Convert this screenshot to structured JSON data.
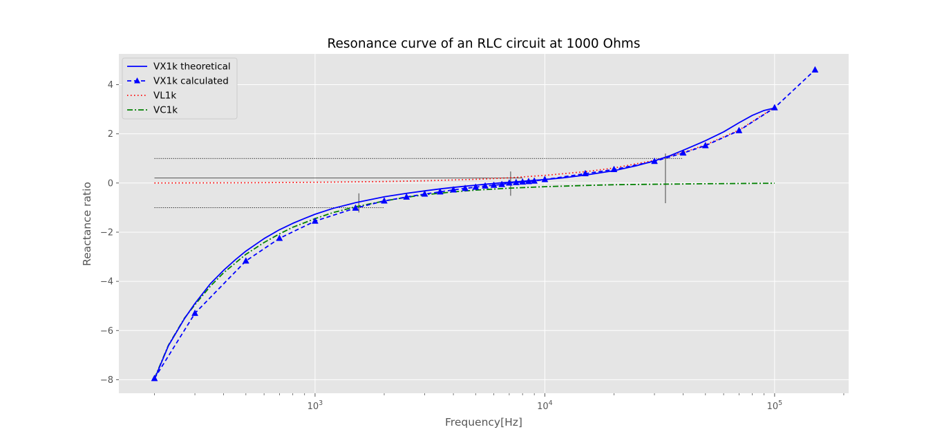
{
  "chart_data": {
    "type": "line",
    "title": "Resonance curve of an RLC circuit at 1000 Ohms",
    "xlabel": "Frequency[Hz]",
    "ylabel": "Reactance ratio",
    "xscale": "log",
    "xlim": [
      140,
      210000
    ],
    "ylim": [
      -8.55,
      5.25
    ],
    "grid": true,
    "legend_position": "upper-left",
    "x_ticks": [
      {
        "value": 1000,
        "base": "10",
        "exp": "3"
      },
      {
        "value": 10000,
        "base": "10",
        "exp": "4"
      },
      {
        "value": 100000,
        "base": "10",
        "exp": "5"
      }
    ],
    "y_ticks": [
      {
        "value": -8,
        "label": "−8"
      },
      {
        "value": -6,
        "label": "−6"
      },
      {
        "value": -4,
        "label": "−4"
      },
      {
        "value": -2,
        "label": "−2"
      },
      {
        "value": 0,
        "label": "0"
      },
      {
        "value": 2,
        "label": "2"
      },
      {
        "value": 4,
        "label": "4"
      }
    ],
    "series": [
      {
        "name": "VX1k theoretical",
        "color": "#0000ff",
        "style": "solid",
        "x": [
          200,
          230,
          270,
          300,
          350,
          400,
          450,
          500,
          600,
          700,
          800,
          900,
          1000,
          1200,
          1500,
          2000,
          2500,
          3000,
          3500,
          4000,
          4500,
          5000,
          5500,
          6000,
          6500,
          7000,
          7500,
          8000,
          8500,
          9000,
          10000,
          12000,
          15000,
          20000,
          25000,
          30000,
          35000,
          40000,
          50000,
          60000,
          70000,
          80000,
          90000,
          100000
        ],
        "y": [
          -7.98,
          -6.62,
          -5.52,
          -4.9,
          -4.1,
          -3.55,
          -3.12,
          -2.77,
          -2.26,
          -1.9,
          -1.64,
          -1.44,
          -1.27,
          -1.03,
          -0.8,
          -0.56,
          -0.42,
          -0.32,
          -0.24,
          -0.18,
          -0.13,
          -0.09,
          -0.05,
          -0.02,
          0.01,
          0.03,
          0.05,
          0.07,
          0.09,
          0.11,
          0.14,
          0.21,
          0.32,
          0.5,
          0.7,
          0.9,
          1.11,
          1.33,
          1.72,
          2.08,
          2.45,
          2.75,
          2.95,
          3.05
        ]
      },
      {
        "name": "VX1k calculated",
        "color": "#0000ff",
        "style": "dashed",
        "marker": "triangle",
        "x": [
          200,
          300,
          500,
          700,
          1000,
          1500,
          2000,
          2500,
          3000,
          3500,
          4000,
          4500,
          5000,
          5500,
          6000,
          6500,
          7000,
          7500,
          8000,
          8500,
          9000,
          10000,
          15000,
          20000,
          30000,
          40000,
          50000,
          70000,
          100000,
          150000
        ],
        "y": [
          -7.95,
          -5.3,
          -3.17,
          -2.25,
          -1.55,
          -1.02,
          -0.73,
          -0.57,
          -0.45,
          -0.36,
          -0.28,
          -0.22,
          -0.17,
          -0.12,
          -0.09,
          -0.06,
          0.0,
          0.02,
          0.04,
          0.06,
          0.08,
          0.14,
          0.38,
          0.55,
          0.88,
          1.22,
          1.52,
          2.13,
          3.06,
          4.6
        ]
      },
      {
        "name": "VL1k",
        "color": "#ff0000",
        "style": "dotted",
        "x": [
          200,
          500,
          1000,
          2000,
          3000,
          5000,
          7000,
          10000,
          15000,
          20000,
          30000,
          40000,
          50000,
          70000,
          100000
        ],
        "y": [
          0.0,
          0.01,
          0.03,
          0.06,
          0.09,
          0.15,
          0.21,
          0.31,
          0.46,
          0.61,
          0.92,
          1.24,
          1.55,
          2.15,
          3.08
        ]
      },
      {
        "name": "VC1k",
        "color": "#008000",
        "style": "dashdot",
        "x": [
          200,
          230,
          270,
          300,
          350,
          400,
          500,
          600,
          700,
          800,
          1000,
          1200,
          1500,
          2000,
          2500,
          3000,
          4000,
          5000,
          7000,
          10000,
          15000,
          20000,
          30000,
          50000,
          100000
        ],
        "y": [
          -7.95,
          -6.6,
          -5.5,
          -4.95,
          -4.2,
          -3.65,
          -2.9,
          -2.42,
          -2.07,
          -1.8,
          -1.45,
          -1.2,
          -0.97,
          -0.73,
          -0.58,
          -0.48,
          -0.36,
          -0.29,
          -0.21,
          -0.15,
          -0.1,
          -0.07,
          -0.05,
          -0.03,
          -0.01
        ]
      }
    ],
    "reference_lines": [
      {
        "x1": 200,
        "x2": 40000,
        "y": 1.0,
        "style": "dotted"
      },
      {
        "x1": 200,
        "x2": 2000,
        "y": -1.0,
        "style": "dotted"
      },
      {
        "x1": 200,
        "x2": 8000,
        "y": 0.2,
        "style": "solid"
      }
    ],
    "marker_lines": [
      {
        "x": 1550,
        "y1": -1.2,
        "y2": -0.42
      },
      {
        "x": 7100,
        "y1": -0.52,
        "y2": 0.47
      },
      {
        "x": 33500,
        "y1": -0.82,
        "y2": 1.2
      }
    ]
  }
}
